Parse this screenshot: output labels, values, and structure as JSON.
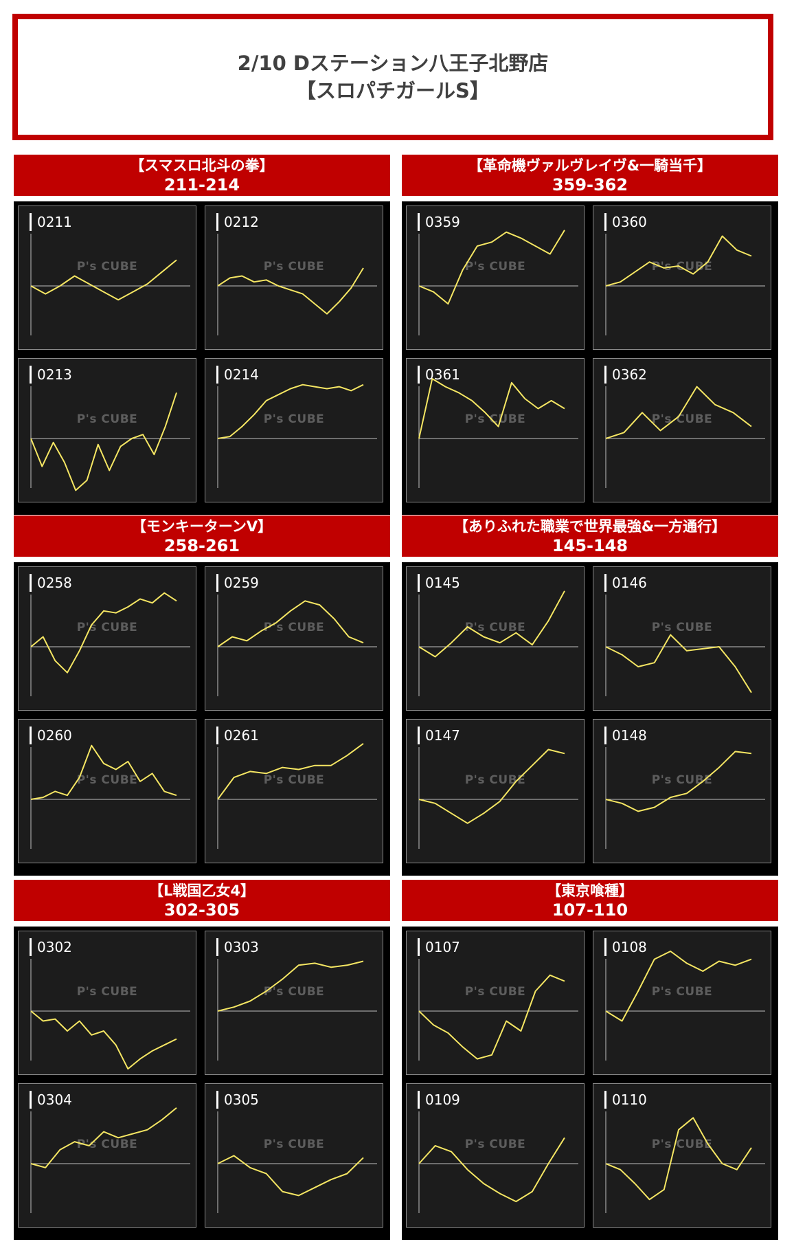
{
  "header": {
    "line1": "2/10 Dステーション八王子北野店",
    "line2": "【スロパチガールS】"
  },
  "watermark": "P's CUBE",
  "colors": {
    "banner": "#c00000",
    "line": "#f5e663",
    "panel": "#1c1c1c",
    "axis": "#bfbfbf"
  },
  "chart_data": [
    {
      "type": "line",
      "title": "【スマスロ北斗の拳】",
      "subtitle": "211-214",
      "panels": [
        {
          "id": "0211",
          "y": [
            0,
            -8,
            0,
            10,
            2,
            -6,
            -14,
            -6,
            2,
            14,
            26
          ]
        },
        {
          "id": "0212",
          "y": [
            0,
            8,
            10,
            4,
            6,
            0,
            -4,
            -8,
            -18,
            -28,
            -16,
            -2,
            18
          ]
        },
        {
          "id": "0213",
          "y": [
            0,
            -28,
            -4,
            -24,
            -52,
            -42,
            -6,
            -32,
            -8,
            0,
            4,
            -16,
            12,
            46
          ]
        },
        {
          "id": "0214",
          "y": [
            0,
            2,
            12,
            24,
            38,
            44,
            50,
            54,
            52,
            50,
            52,
            48,
            54
          ]
        }
      ]
    },
    {
      "type": "line",
      "title": "【革命機ヴァルヴレイヴ&一騎当千】",
      "subtitle": "359-362",
      "panels": [
        {
          "id": "0359",
          "y": [
            0,
            -6,
            -18,
            16,
            40,
            44,
            54,
            48,
            40,
            32,
            56
          ]
        },
        {
          "id": "0360",
          "y": [
            0,
            4,
            14,
            24,
            18,
            20,
            12,
            24,
            50,
            36,
            30
          ]
        },
        {
          "id": "0361",
          "y": [
            0,
            60,
            52,
            46,
            38,
            26,
            12,
            56,
            40,
            30,
            38,
            30
          ]
        },
        {
          "id": "0362",
          "y": [
            0,
            6,
            26,
            8,
            22,
            52,
            34,
            26,
            12
          ]
        }
      ]
    },
    {
      "type": "line",
      "title": "【モンキーターンⅤ】",
      "subtitle": "258-261",
      "panels": [
        {
          "id": "0258",
          "y": [
            0,
            10,
            -14,
            -26,
            -4,
            22,
            36,
            34,
            40,
            48,
            44,
            54,
            46
          ]
        },
        {
          "id": "0259",
          "y": [
            0,
            10,
            6,
            16,
            24,
            36,
            46,
            42,
            28,
            10,
            4
          ]
        },
        {
          "id": "0260",
          "y": [
            0,
            2,
            8,
            4,
            22,
            54,
            36,
            30,
            38,
            18,
            26,
            8,
            4
          ]
        },
        {
          "id": "0261",
          "y": [
            0,
            22,
            28,
            26,
            32,
            30,
            34,
            34,
            44,
            56
          ]
        }
      ]
    },
    {
      "type": "line",
      "title": "【ありふれた職業で世界最強&一方通行】",
      "subtitle": "145-148",
      "panels": [
        {
          "id": "0145",
          "y": [
            0,
            -10,
            4,
            20,
            10,
            4,
            14,
            2,
            26,
            56
          ]
        },
        {
          "id": "0146",
          "y": [
            0,
            -8,
            -20,
            -16,
            12,
            -4,
            -2,
            0,
            -20,
            -46
          ]
        },
        {
          "id": "0147",
          "y": [
            0,
            -4,
            -14,
            -24,
            -14,
            -2,
            18,
            34,
            50,
            46
          ]
        },
        {
          "id": "0148",
          "y": [
            0,
            -4,
            -12,
            -8,
            2,
            6,
            18,
            32,
            48,
            46
          ]
        }
      ]
    },
    {
      "type": "line",
      "title": "【L戦国乙女4】",
      "subtitle": "302-305",
      "panels": [
        {
          "id": "0302",
          "y": [
            0,
            -10,
            -8,
            -20,
            -10,
            -24,
            -20,
            -34,
            -58,
            -48,
            -40,
            -34,
            -28
          ]
        },
        {
          "id": "0303",
          "y": [
            0,
            4,
            10,
            20,
            32,
            46,
            48,
            44,
            46,
            50
          ]
        },
        {
          "id": "0304",
          "y": [
            0,
            -4,
            14,
            22,
            18,
            32,
            26,
            30,
            34,
            44,
            56
          ]
        },
        {
          "id": "0305",
          "y": [
            0,
            8,
            -4,
            -10,
            -28,
            -32,
            -24,
            -16,
            -10,
            6
          ]
        }
      ]
    },
    {
      "type": "line",
      "title": "【東京喰種】",
      "subtitle": "107-110",
      "panels": [
        {
          "id": "0107",
          "y": [
            0,
            -14,
            -22,
            -36,
            -48,
            -44,
            -10,
            -20,
            20,
            36,
            30
          ]
        },
        {
          "id": "0108",
          "y": [
            0,
            -10,
            20,
            52,
            60,
            48,
            40,
            50,
            46,
            52
          ]
        },
        {
          "id": "0109",
          "y": [
            0,
            18,
            12,
            -6,
            -20,
            -30,
            -38,
            -28,
            0,
            26
          ]
        },
        {
          "id": "0110",
          "y": [
            0,
            -6,
            -20,
            -36,
            -26,
            34,
            46,
            20,
            0,
            -6,
            16
          ]
        }
      ]
    }
  ]
}
